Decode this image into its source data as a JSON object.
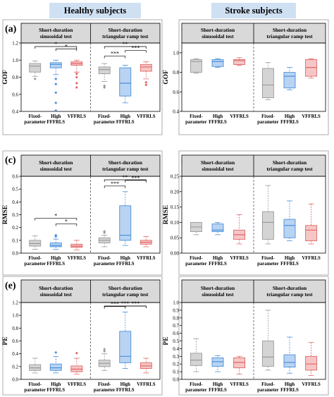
{
  "headers": {
    "healthy": "Healthy subjects",
    "stroke": "Stroke subjects"
  },
  "strips": {
    "sin": [
      "Short-duration",
      "sinusoidal test"
    ],
    "ramp": [
      "Short-duration",
      "triangular ramp test"
    ]
  },
  "categories": [
    [
      "Fixed-",
      "parameter"
    ],
    [
      "High",
      "FFFRLS"
    ],
    [
      "VFFRLS"
    ]
  ],
  "series_colors": [
    "#9a9a9a",
    "#4a90d9",
    "#e06666"
  ],
  "box_fills": [
    "#d4d4d4",
    "#b9d3f2",
    "#f6c6c6"
  ],
  "chart_data": [
    {
      "panel": "(a)",
      "type": "box",
      "ylabel": "GOF",
      "ylim": [
        0.4,
        1.2
      ],
      "yticks": [
        "0.4",
        "0.6",
        "0.8",
        "1.0",
        "1.2"
      ],
      "groups": [
        {
          "name": "Short-duration sinusoidal test",
          "boxes": [
            {
              "min": 0.81,
              "q1": 0.86,
              "med": 0.93,
              "q3": 0.96,
              "max": 0.99,
              "outliers": [
                0.78
              ]
            },
            {
              "min": 0.83,
              "q1": 0.91,
              "med": 0.95,
              "q3": 0.97,
              "max": 1.0,
              "outliers": [
                0.78,
                0.72,
                0.62,
                0.5,
                0.41
              ]
            },
            {
              "min": 0.86,
              "q1": 0.94,
              "med": 0.96,
              "q3": 0.98,
              "max": 1.0,
              "outliers": [
                0.84,
                0.8,
                0.73,
                0.68
              ]
            }
          ]
        },
        {
          "name": "Short-duration triangular ramp test",
          "boxes": [
            {
              "min": 0.75,
              "q1": 0.84,
              "med": 0.89,
              "q3": 0.92,
              "max": 0.96,
              "outliers": [
                0.7,
                0.68
              ]
            },
            {
              "min": 0.5,
              "q1": 0.58,
              "med": 0.73,
              "q3": 0.91,
              "max": 0.94,
              "outliers": []
            },
            {
              "min": 0.78,
              "q1": 0.87,
              "med": 0.92,
              "q3": 0.95,
              "max": 0.98,
              "outliers": [
                0.74,
                0.71
              ]
            }
          ]
        }
      ],
      "significance": [
        {
          "group": 0,
          "from": 0,
          "to": 2,
          "label": "*"
        },
        {
          "group": 0,
          "from": 1,
          "to": 2,
          "label": "*"
        },
        {
          "group": 1,
          "from": 0,
          "to": 1,
          "label": "***"
        },
        {
          "group": 1,
          "from": 0,
          "to": 2,
          "label": "**"
        },
        {
          "group": 1,
          "from": 1,
          "to": 2,
          "label": "***"
        }
      ]
    },
    {
      "panel": "(b)",
      "type": "box",
      "ylabel": "GOF",
      "ylim": [
        0.4,
        1.1
      ],
      "yticks": [
        "0.4",
        "0.6",
        "0.8",
        "1.0"
      ],
      "groups": [
        {
          "name": "Short-duration sinusoidal test",
          "boxes": [
            {
              "min": 0.79,
              "q1": 0.8,
              "med": 0.91,
              "q3": 0.93,
              "max": 0.94,
              "outliers": []
            },
            {
              "min": 0.85,
              "q1": 0.86,
              "med": 0.91,
              "q3": 0.93,
              "max": 0.94,
              "outliers": []
            },
            {
              "min": 0.87,
              "q1": 0.88,
              "med": 0.92,
              "q3": 0.93,
              "max": 0.95,
              "outliers": []
            }
          ]
        },
        {
          "name": "Short-duration triangular ramp test",
          "boxes": [
            {
              "min": 0.52,
              "q1": 0.54,
              "med": 0.67,
              "q3": 0.84,
              "max": 0.9,
              "outliers": []
            },
            {
              "min": 0.62,
              "q1": 0.64,
              "med": 0.76,
              "q3": 0.8,
              "max": 0.85,
              "outliers": []
            },
            {
              "min": 0.74,
              "q1": 0.76,
              "med": 0.85,
              "q3": 0.93,
              "max": 0.94,
              "outliers": []
            }
          ]
        }
      ],
      "significance": []
    },
    {
      "panel": "(c)",
      "type": "box",
      "ylabel": "RMSE",
      "ylim": [
        0.0,
        0.6
      ],
      "yticks": [
        "0.0",
        "0.1",
        "0.2",
        "0.3",
        "0.4",
        "0.5",
        "0.6"
      ],
      "groups": [
        {
          "name": "Short-duration sinusoidal test",
          "boxes": [
            {
              "min": 0.03,
              "q1": 0.055,
              "med": 0.075,
              "q3": 0.1,
              "max": 0.135,
              "outliers": []
            },
            {
              "min": 0.03,
              "q1": 0.05,
              "med": 0.06,
              "q3": 0.08,
              "max": 0.11,
              "outliers": [
                0.14,
                0.13
              ]
            },
            {
              "min": 0.025,
              "q1": 0.045,
              "med": 0.055,
              "q3": 0.07,
              "max": 0.1,
              "outliers": []
            }
          ]
        },
        {
          "name": "Short-duration triangular ramp test",
          "boxes": [
            {
              "min": 0.05,
              "q1": 0.08,
              "med": 0.1,
              "q3": 0.12,
              "max": 0.14,
              "outliers": [
                0.17,
                0.16
              ]
            },
            {
              "min": 0.06,
              "q1": 0.1,
              "med": 0.14,
              "q3": 0.37,
              "max": 0.48,
              "outliers": []
            },
            {
              "min": 0.05,
              "q1": 0.07,
              "med": 0.085,
              "q3": 0.1,
              "max": 0.13,
              "outliers": []
            }
          ]
        }
      ],
      "significance": [
        {
          "group": 0,
          "from": 0,
          "to": 2,
          "label": "*"
        },
        {
          "group": 0,
          "from": 1,
          "to": 2,
          "label": "*"
        },
        {
          "group": 1,
          "from": 0,
          "to": 1,
          "label": "***"
        },
        {
          "group": 1,
          "from": 0,
          "to": 2,
          "label": "**"
        },
        {
          "group": 1,
          "from": 1,
          "to": 2,
          "label": "***"
        }
      ]
    },
    {
      "panel": "(d)",
      "type": "box",
      "ylabel": "RMSE",
      "ylim": [
        0.0,
        0.25
      ],
      "yticks": [
        "0.00",
        "0.05",
        "0.10",
        "0.15",
        "0.20",
        "0.25"
      ],
      "groups": [
        {
          "name": "Short-duration sinusoidal test",
          "boxes": [
            {
              "min": 0.06,
              "q1": 0.07,
              "med": 0.085,
              "q3": 0.1,
              "max": 0.1,
              "outliers": []
            },
            {
              "min": 0.06,
              "q1": 0.07,
              "med": 0.075,
              "q3": 0.095,
              "max": 0.1,
              "outliers": []
            },
            {
              "min": 0.03,
              "q1": 0.045,
              "med": 0.06,
              "q3": 0.075,
              "max": 0.125,
              "outliers": []
            }
          ]
        },
        {
          "name": "Short-duration triangular ramp test",
          "boxes": [
            {
              "min": 0.03,
              "q1": 0.045,
              "med": 0.1,
              "q3": 0.135,
              "max": 0.22,
              "outliers": []
            },
            {
              "min": 0.04,
              "q1": 0.05,
              "med": 0.09,
              "q3": 0.11,
              "max": 0.17,
              "outliers": []
            },
            {
              "min": 0.03,
              "q1": 0.04,
              "med": 0.075,
              "q3": 0.09,
              "max": 0.16,
              "outliers": []
            }
          ]
        }
      ],
      "significance": []
    },
    {
      "panel": "(e)",
      "type": "box",
      "ylabel": "PE",
      "ylim": [
        0.0,
        1.2
      ],
      "yticks": [
        "0.0",
        "0.2",
        "0.4",
        "0.6",
        "0.8",
        "1.0",
        "1.2"
      ],
      "groups": [
        {
          "name": "Short-duration sinusoidal test",
          "boxes": [
            {
              "min": 0.1,
              "q1": 0.14,
              "med": 0.18,
              "q3": 0.23,
              "max": 0.33,
              "outliers": []
            },
            {
              "min": 0.1,
              "q1": 0.14,
              "med": 0.18,
              "q3": 0.24,
              "max": 0.36,
              "outliers": [
                0.42
              ]
            },
            {
              "min": 0.08,
              "q1": 0.12,
              "med": 0.16,
              "q3": 0.21,
              "max": 0.33,
              "outliers": [
                0.41
              ]
            }
          ]
        },
        {
          "name": "Short-duration triangular ramp test",
          "boxes": [
            {
              "min": 0.14,
              "q1": 0.2,
              "med": 0.25,
              "q3": 0.3,
              "max": 0.4,
              "outliers": [
                0.47,
                0.44
              ]
            },
            {
              "min": 0.17,
              "q1": 0.26,
              "med": 0.36,
              "q3": 0.75,
              "max": 1.05,
              "outliers": []
            },
            {
              "min": 0.1,
              "q1": 0.17,
              "med": 0.21,
              "q3": 0.26,
              "max": 0.33,
              "outliers": []
            }
          ]
        }
      ],
      "significance": [
        {
          "group": 1,
          "from": 0,
          "to": 1,
          "label": "***"
        },
        {
          "group": 1,
          "from": 0,
          "to": 2,
          "label": "***"
        },
        {
          "group": 1,
          "from": 1,
          "to": 2,
          "label": "***"
        }
      ]
    },
    {
      "panel": "(f)",
      "type": "box",
      "ylabel": "PE",
      "ylim": [
        0.0,
        1.0
      ],
      "yticks": [
        "0.0",
        "0.1",
        "0.2",
        "0.3",
        "0.4",
        "0.5",
        "0.6",
        "0.7",
        "0.8",
        "0.9",
        "1.0"
      ],
      "groups": [
        {
          "name": "Short-duration sinusoidal test",
          "boxes": [
            {
              "min": 0.1,
              "q1": 0.18,
              "med": 0.25,
              "q3": 0.34,
              "max": 0.53,
              "outliers": []
            },
            {
              "min": 0.1,
              "q1": 0.17,
              "med": 0.23,
              "q3": 0.28,
              "max": 0.31,
              "outliers": []
            },
            {
              "min": 0.07,
              "q1": 0.15,
              "med": 0.22,
              "q3": 0.28,
              "max": 0.3,
              "outliers": []
            }
          ]
        },
        {
          "name": "Short-duration triangular ramp test",
          "boxes": [
            {
              "min": 0.12,
              "q1": 0.17,
              "med": 0.29,
              "q3": 0.5,
              "max": 0.9,
              "outliers": []
            },
            {
              "min": 0.08,
              "q1": 0.16,
              "med": 0.22,
              "q3": 0.32,
              "max": 0.55,
              "outliers": []
            },
            {
              "min": 0.05,
              "q1": 0.12,
              "med": 0.2,
              "q3": 0.3,
              "max": 0.48,
              "outliers": []
            }
          ]
        }
      ],
      "significance": []
    }
  ]
}
